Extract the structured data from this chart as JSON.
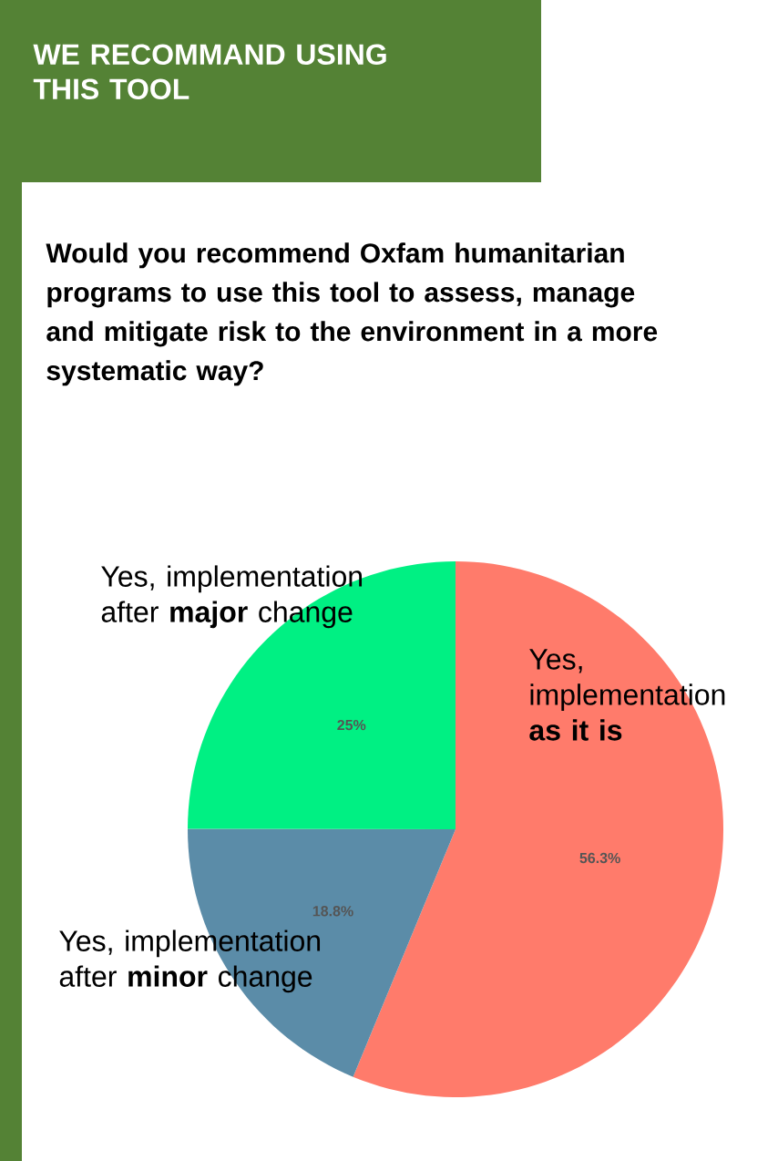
{
  "chart_data": {
    "type": "pie",
    "title": "WE RECOMMAND USING THIS TOOL",
    "subtitle": "Would you recommend Oxfam humanitarian programs to use this tool to assess, manage and mitigate risk to the environment in a more systematic way?",
    "categories": [
      "Yes, implementation **as it is**",
      "Yes, implementation after **minor** change",
      "Yes, implementation after **major** change"
    ],
    "values": [
      56.3,
      18.8,
      25
    ],
    "value_labels": [
      "56.3%",
      "18.8%",
      "25%"
    ],
    "colors": [
      "#ff7b6b",
      "#5b8ca8",
      "#00f083"
    ]
  }
}
